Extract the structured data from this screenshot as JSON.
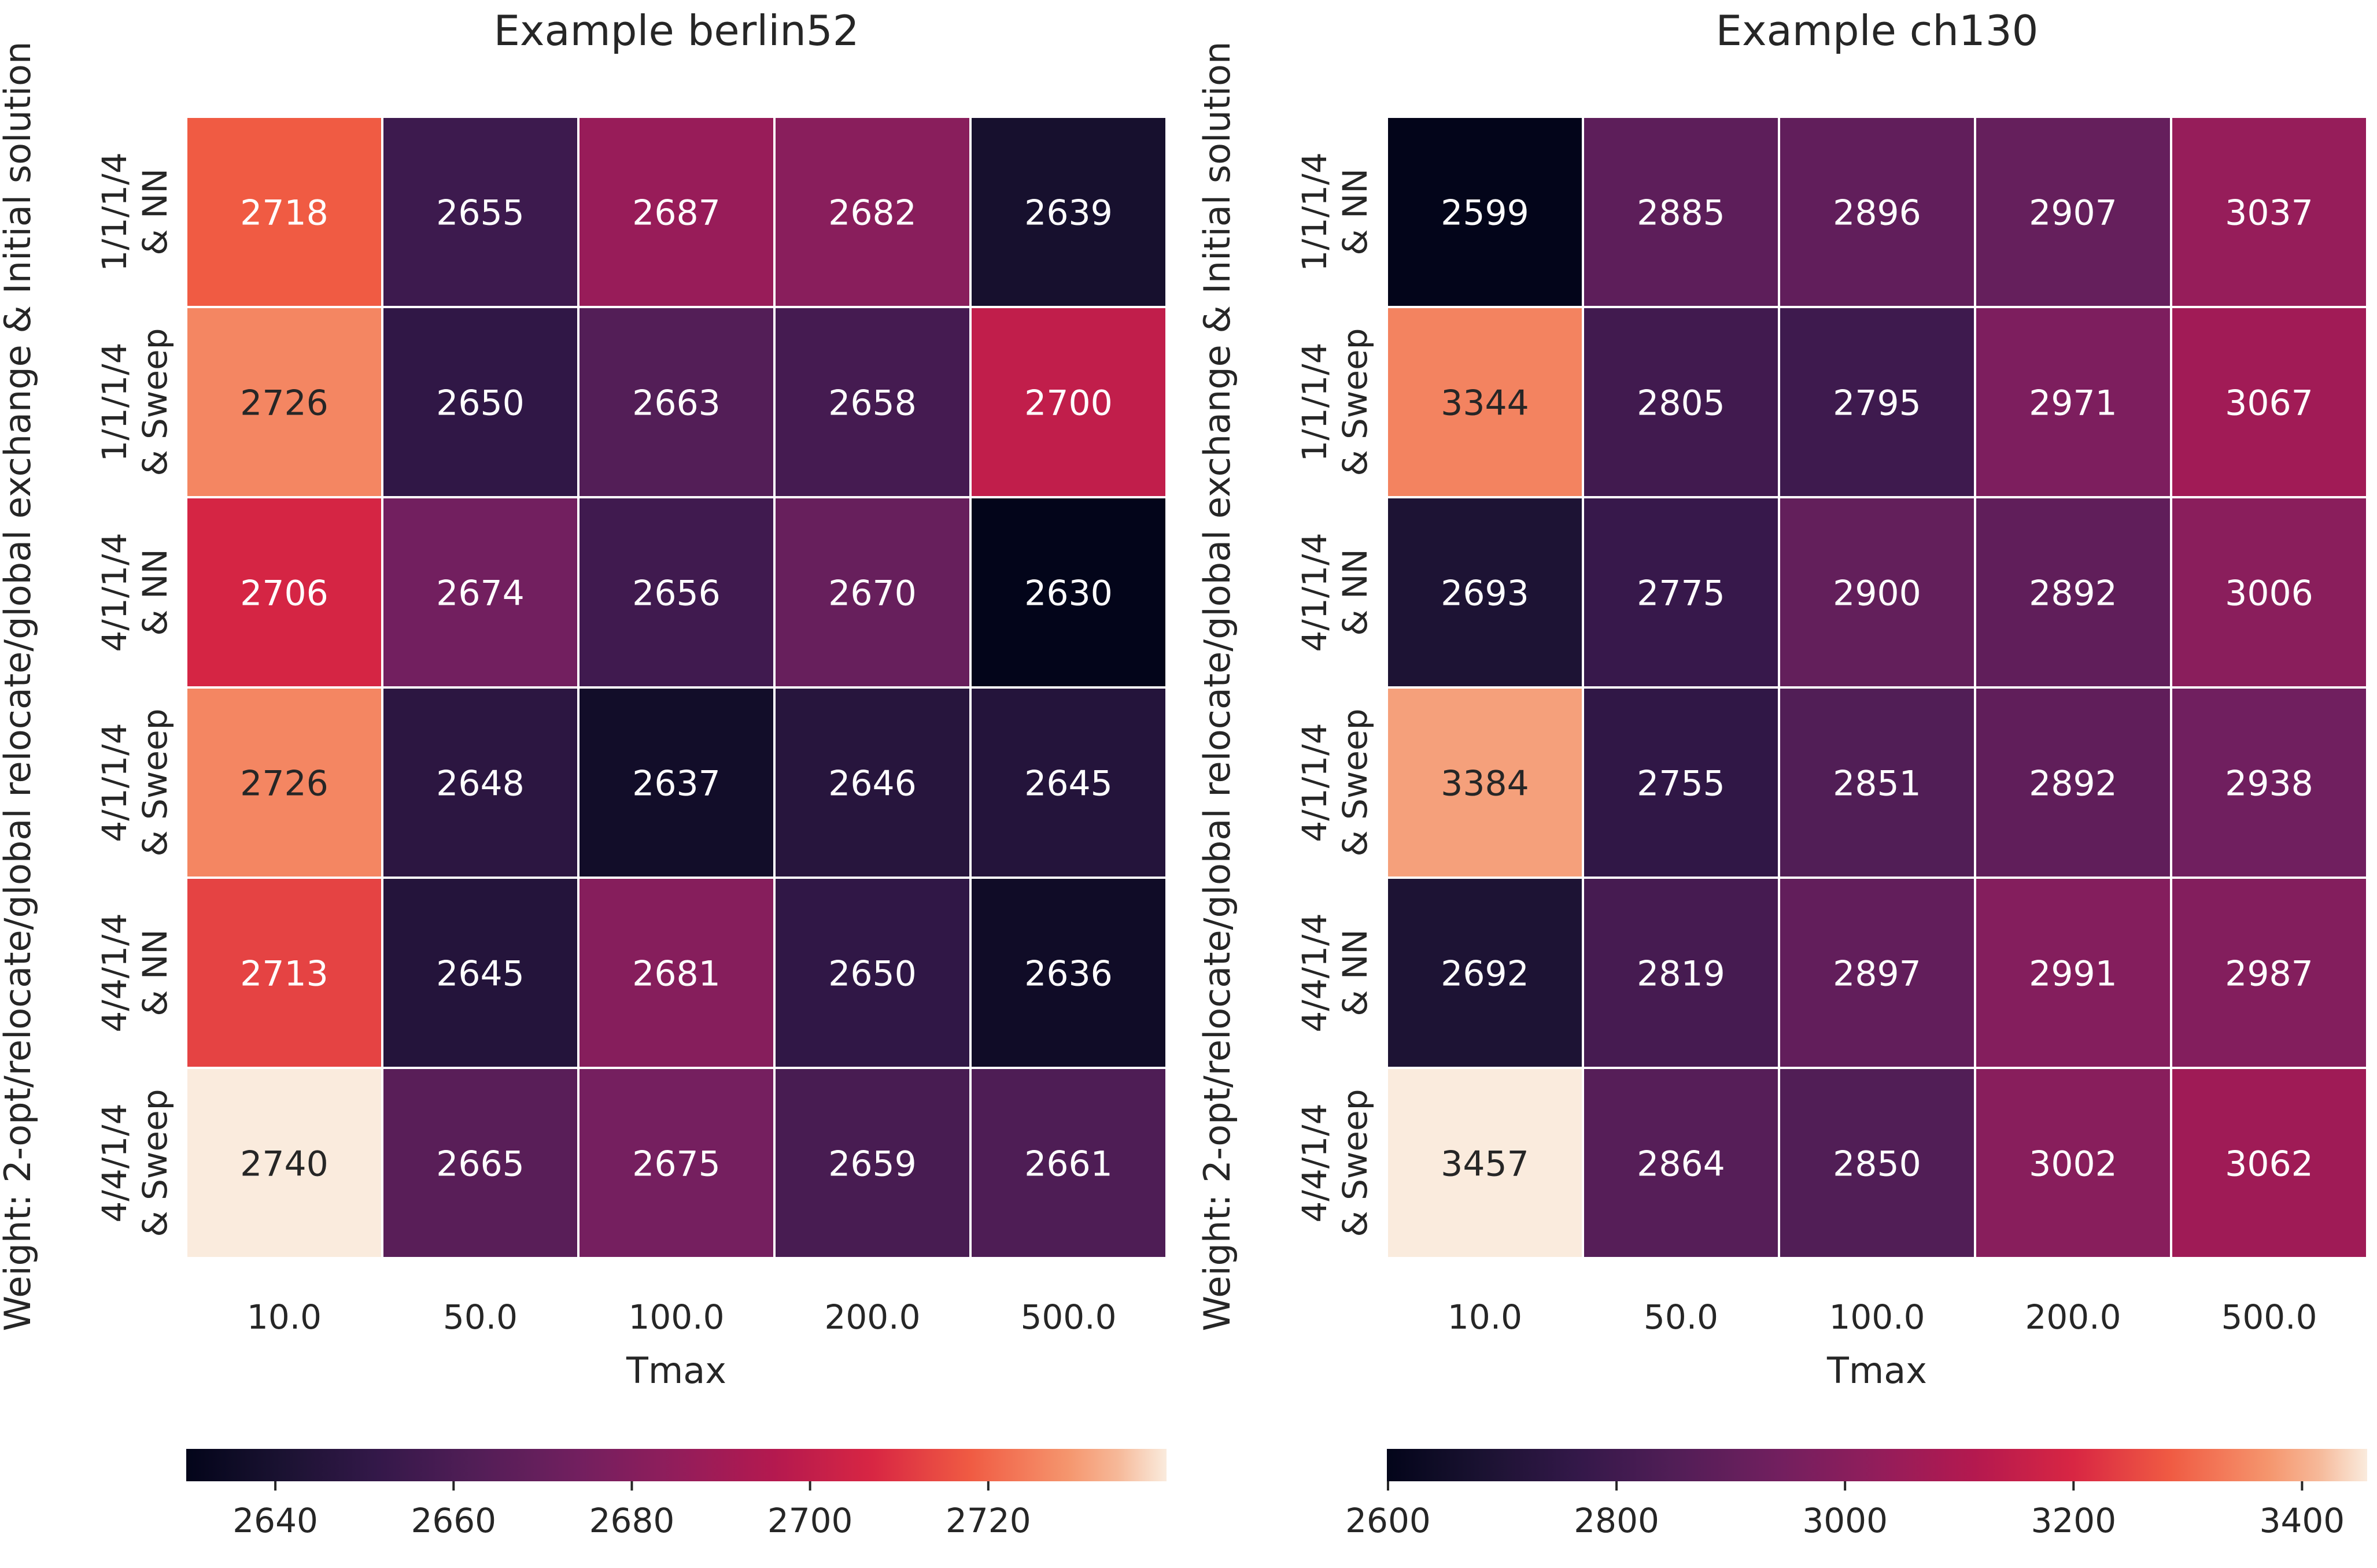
{
  "ylabel_shared": "Weight: 2-opt/relocate/global relocate/global exchange & Initial solution",
  "chart_data": [
    {
      "type": "heatmap",
      "title": "Example berlin52",
      "xlabel": "Tmax",
      "ylabel": "Weight: 2-opt/relocate/global relocate/global exchange & Initial solution",
      "x_categories": [
        "10.0",
        "50.0",
        "100.0",
        "200.0",
        "500.0"
      ],
      "y_categories": [
        [
          "1/1/1/4",
          "& NN"
        ],
        [
          "1/1/1/4",
          "& Sweep"
        ],
        [
          "4/1/1/4",
          "& NN"
        ],
        [
          "4/1/1/4",
          "& Sweep"
        ],
        [
          "4/4/1/4",
          "& NN"
        ],
        [
          "4/4/1/4",
          "& Sweep"
        ]
      ],
      "values": [
        [
          2718,
          2655,
          2687,
          2682,
          2639
        ],
        [
          2726,
          2650,
          2663,
          2658,
          2700
        ],
        [
          2706,
          2674,
          2656,
          2670,
          2630
        ],
        [
          2726,
          2648,
          2637,
          2646,
          2645
        ],
        [
          2713,
          2645,
          2681,
          2650,
          2636
        ],
        [
          2740,
          2665,
          2675,
          2659,
          2661
        ]
      ],
      "colorbar": {
        "vmin": 2630,
        "vmax": 2740,
        "ticks": [
          "2640",
          "2660",
          "2680",
          "2700",
          "2720"
        ],
        "orientation": "horizontal",
        "colormap": "rocket"
      }
    },
    {
      "type": "heatmap",
      "title": "Example ch130",
      "xlabel": "Tmax",
      "ylabel": "Weight: 2-opt/relocate/global relocate/global exchange & Initial solution",
      "x_categories": [
        "10.0",
        "50.0",
        "100.0",
        "200.0",
        "500.0"
      ],
      "y_categories": [
        [
          "1/1/1/4",
          "& NN"
        ],
        [
          "1/1/1/4",
          "& Sweep"
        ],
        [
          "4/1/1/4",
          "& NN"
        ],
        [
          "4/1/1/4",
          "& Sweep"
        ],
        [
          "4/4/1/4",
          "& NN"
        ],
        [
          "4/4/1/4",
          "& Sweep"
        ]
      ],
      "values": [
        [
          2599,
          2885,
          2896,
          2907,
          3037
        ],
        [
          3344,
          2805,
          2795,
          2971,
          3067
        ],
        [
          2693,
          2775,
          2900,
          2892,
          3006
        ],
        [
          3384,
          2755,
          2851,
          2892,
          2938
        ],
        [
          2692,
          2819,
          2897,
          2991,
          2987
        ],
        [
          3457,
          2864,
          2850,
          3002,
          3062
        ]
      ],
      "colorbar": {
        "vmin": 2599,
        "vmax": 3457,
        "ticks": [
          "2600",
          "2800",
          "3000",
          "3200",
          "3400"
        ],
        "orientation": "horizontal",
        "colormap": "rocket"
      }
    }
  ]
}
